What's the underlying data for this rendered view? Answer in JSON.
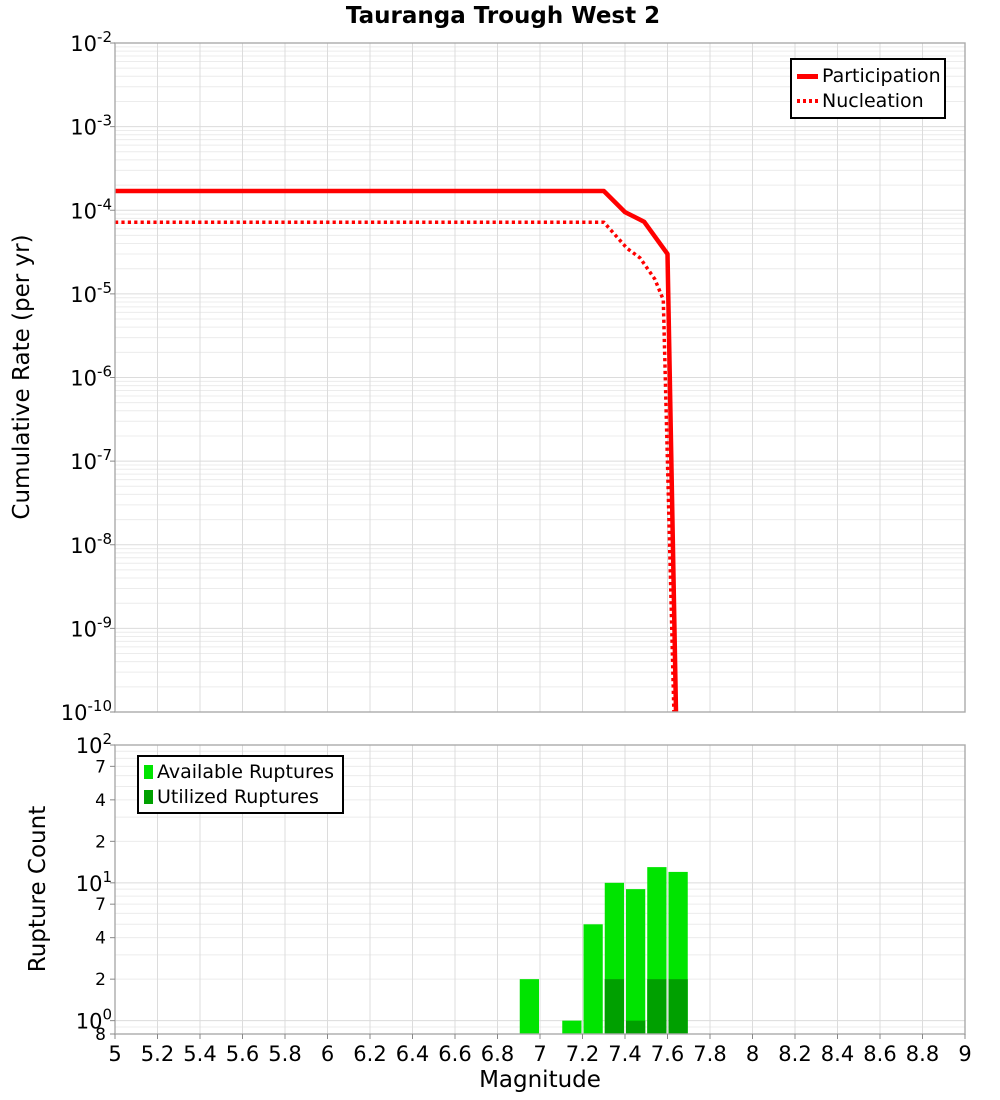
{
  "title": "Tauranga Trough West 2",
  "x_axis": {
    "label": "Magnitude",
    "ticks": [
      {
        "v": 5,
        "label": "5"
      },
      {
        "v": 5.2,
        "label": "5.2"
      },
      {
        "v": 5.4,
        "label": "5.4"
      },
      {
        "v": 5.6,
        "label": "5.6"
      },
      {
        "v": 5.8,
        "label": "5.8"
      },
      {
        "v": 6,
        "label": "6"
      },
      {
        "v": 6.2,
        "label": "6.2"
      },
      {
        "v": 6.4,
        "label": "6.4"
      },
      {
        "v": 6.6,
        "label": "6.6"
      },
      {
        "v": 6.8,
        "label": "6.8"
      },
      {
        "v": 7,
        "label": "7"
      },
      {
        "v": 7.2,
        "label": "7.2"
      },
      {
        "v": 7.4,
        "label": "7.4"
      },
      {
        "v": 7.6,
        "label": "7.6"
      },
      {
        "v": 7.8,
        "label": "7.8"
      },
      {
        "v": 8,
        "label": "8"
      },
      {
        "v": 8.2,
        "label": "8.2"
      },
      {
        "v": 8.4,
        "label": "8.4"
      },
      {
        "v": 8.6,
        "label": "8.6"
      },
      {
        "v": 8.8,
        "label": "8.8"
      },
      {
        "v": 9,
        "label": "9"
      }
    ]
  },
  "top_chart": {
    "ylabel": "Cumulative Rate (per yr)",
    "y_ticks": [
      {
        "v": 0.01,
        "exp": "-2"
      },
      {
        "v": 0.001,
        "exp": "-3"
      },
      {
        "v": 0.0001,
        "exp": "-4"
      },
      {
        "v": 1e-05,
        "exp": "-5"
      },
      {
        "v": 1e-06,
        "exp": "-6"
      },
      {
        "v": 1e-07,
        "exp": "-7"
      },
      {
        "v": 1e-08,
        "exp": "-8"
      },
      {
        "v": 1e-09,
        "exp": "-9"
      },
      {
        "v": 1e-10,
        "exp": "-10"
      }
    ],
    "legend": [
      {
        "label": "Participation",
        "style": "solid"
      },
      {
        "label": "Nucleation",
        "style": "dotted"
      }
    ]
  },
  "bottom_chart": {
    "ylabel": "Rupture Count",
    "y_ticks": [
      {
        "v": 100,
        "exp": "2"
      },
      {
        "v": 70,
        "label": "7"
      },
      {
        "v": 40,
        "label": "4"
      },
      {
        "v": 20,
        "label": "2"
      },
      {
        "v": 10,
        "exp": "1"
      },
      {
        "v": 7,
        "label": "7"
      },
      {
        "v": 4,
        "label": "4"
      },
      {
        "v": 2,
        "label": "2"
      },
      {
        "v": 1,
        "exp": "0"
      },
      {
        "v": 0.8,
        "label": "8"
      }
    ],
    "legend": [
      {
        "label": "Available Ruptures",
        "color": "#00e400"
      },
      {
        "label": "Utilized Ruptures",
        "color": "#00a000"
      }
    ]
  },
  "colors": {
    "line": "#ff0000",
    "available": "#00e400",
    "utilized": "#00a000",
    "grid_major": "#dcdcdc",
    "grid_minor": "#ececec",
    "frame": "#aaaaaa",
    "tick": "#888888"
  },
  "chart_data": [
    {
      "type": "line",
      "title": "Tauranga Trough West 2",
      "xlabel": "Magnitude",
      "ylabel": "Cumulative Rate (per yr)",
      "xlim": [
        5,
        9
      ],
      "ylim": [
        1e-10,
        0.01
      ],
      "yscale": "log",
      "grid": true,
      "legend_position": "top-right",
      "series": [
        {
          "name": "Participation",
          "style": "solid",
          "color": "#ff0000",
          "points": [
            [
              5,
              0.00017
            ],
            [
              7.3,
              0.00017
            ],
            [
              7.4,
              9.5e-05
            ],
            [
              7.49,
              7.3e-05
            ],
            [
              7.6,
              3e-05
            ],
            [
              7.64,
              1e-10
            ]
          ]
        },
        {
          "name": "Nucleation",
          "style": "dotted",
          "color": "#ff0000",
          "points": [
            [
              5,
              7.2e-05
            ],
            [
              7.3,
              7.2e-05
            ],
            [
              7.41,
              3.5e-05
            ],
            [
              7.47,
              2.7e-05
            ],
            [
              7.54,
              1.5e-05
            ],
            [
              7.58,
              8.5e-06
            ],
            [
              7.63,
              1e-10
            ]
          ]
        }
      ]
    },
    {
      "type": "bar",
      "xlabel": "Magnitude",
      "ylabel": "Rupture Count",
      "xlim": [
        5,
        9
      ],
      "ylim": [
        0.8,
        100
      ],
      "yscale": "log",
      "grid": true,
      "bin_width": 0.1,
      "legend_position": "top-left",
      "series": [
        {
          "name": "Available Ruptures",
          "color": "#00e400",
          "bins": [
            {
              "mag": 6.95,
              "count": 2
            },
            {
              "mag": 7.15,
              "count": 1
            },
            {
              "mag": 7.25,
              "count": 5
            },
            {
              "mag": 7.35,
              "count": 10
            },
            {
              "mag": 7.45,
              "count": 9
            },
            {
              "mag": 7.55,
              "count": 13
            },
            {
              "mag": 7.65,
              "count": 12
            }
          ]
        },
        {
          "name": "Utilized Ruptures",
          "color": "#00a000",
          "bins": [
            {
              "mag": 7.35,
              "count": 2
            },
            {
              "mag": 7.45,
              "count": 1
            },
            {
              "mag": 7.55,
              "count": 2
            },
            {
              "mag": 7.65,
              "count": 2
            }
          ]
        }
      ]
    }
  ]
}
